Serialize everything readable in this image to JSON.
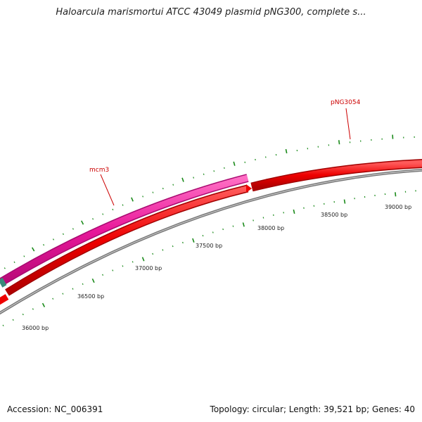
{
  "title": "Haloarcula marismortui ATCC 43049 plasmid pNG300, complete s...",
  "footer": {
    "accession": "Accession: NC_006391",
    "summary": "Topology: circular; Length: 39,521 bp; Genes: 40"
  },
  "ticks": [
    {
      "bp": 36000,
      "label": "36000 bp"
    },
    {
      "bp": 36500,
      "label": "36500 bp"
    },
    {
      "bp": 37000,
      "label": "37000 bp"
    },
    {
      "bp": 37500,
      "label": "37500 bp"
    },
    {
      "bp": 38000,
      "label": "38000 bp"
    },
    {
      "bp": 38500,
      "label": "38500 bp"
    },
    {
      "bp": 39000,
      "label": "39000 bp"
    }
  ],
  "genes": [
    {
      "name": "mcm3",
      "color": "#e8189a",
      "strand": "outer"
    },
    {
      "name": "pNG3054",
      "color": "#ee0000",
      "strand": "outer"
    }
  ],
  "colors": {
    "backbone": "#888888",
    "cds_red": "#ee0000",
    "cds_pink": "#e8189a",
    "tick_green": "#1a8a1a",
    "label_red": "#cc0000"
  }
}
